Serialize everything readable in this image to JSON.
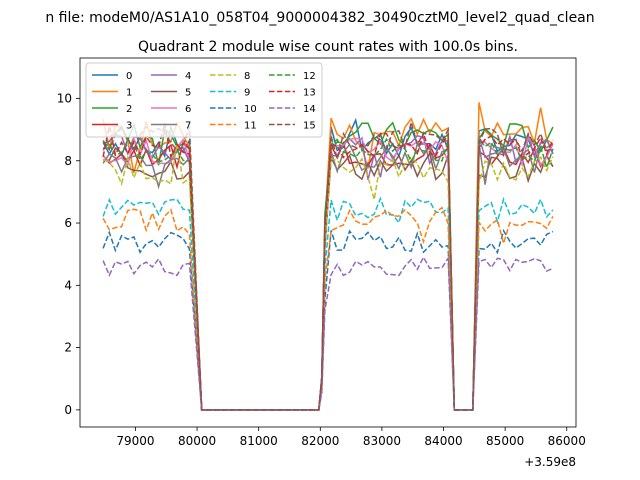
{
  "page": {
    "suptitle": "n file: modeM0/AS1A10_058T04_9000004382_30490cztM0_level2_quad_clean"
  },
  "chart_data": {
    "type": "line",
    "title": "Quadrant 2 module wise count rates with 100.0s bins.",
    "xlabel": "",
    "ylabel": "",
    "x_offset_label": "+3.59e8",
    "xlim": [
      78100,
      86150
    ],
    "ylim": [
      -0.55,
      11.3
    ],
    "xticks": [
      79000,
      80000,
      81000,
      82000,
      83000,
      84000,
      85000,
      86000
    ],
    "yticks": [
      0,
      2,
      4,
      6,
      8,
      10
    ],
    "xtick_labels": [
      "79000",
      "80000",
      "81000",
      "82000",
      "83000",
      "84000",
      "85000",
      "86000"
    ],
    "ytick_labels": [
      "0",
      "2",
      "4",
      "6",
      "8",
      "10"
    ],
    "grid": false,
    "legend_position": "top-left",
    "legend_columns": 4,
    "segments": [
      {
        "from": 78475,
        "to": 79875
      },
      {
        "from": 82075,
        "to": 84075
      },
      {
        "from": 84575,
        "to": 85775
      }
    ],
    "zero_runs": [
      {
        "from": 80075,
        "to": 81975
      },
      {
        "from": 84175,
        "to": 84475
      }
    ],
    "series": [
      {
        "name": "0",
        "color": "#1f77b4",
        "dash": "solid",
        "level": 8.6,
        "amp": 0.5
      },
      {
        "name": "1",
        "color": "#ff7f0e",
        "dash": "solid",
        "level": 8.9,
        "amp": 0.55
      },
      {
        "name": "2",
        "color": "#2ca02c",
        "dash": "solid",
        "level": 8.8,
        "amp": 0.45
      },
      {
        "name": "3",
        "color": "#d62728",
        "dash": "solid",
        "level": 8.2,
        "amp": 0.4
      },
      {
        "name": "4",
        "color": "#9467bd",
        "dash": "solid",
        "level": 8.4,
        "amp": 0.45
      },
      {
        "name": "5",
        "color": "#8c564b",
        "dash": "solid",
        "level": 7.8,
        "amp": 0.45
      },
      {
        "name": "6",
        "color": "#e377c2",
        "dash": "solid",
        "level": 8.3,
        "amp": 0.45
      },
      {
        "name": "7",
        "color": "#7f7f7f",
        "dash": "solid",
        "level": 8.1,
        "amp": 0.5
      },
      {
        "name": "8",
        "color": "#bcbd22",
        "dash": "dashed",
        "level": 7.7,
        "amp": 0.45
      },
      {
        "name": "9",
        "color": "#17becf",
        "dash": "dashed",
        "level": 6.5,
        "amp": 0.3
      },
      {
        "name": "10",
        "color": "#1f77b4",
        "dash": "dashed",
        "level": 5.4,
        "amp": 0.35
      },
      {
        "name": "11",
        "color": "#ff7f0e",
        "dash": "dashed",
        "level": 6.1,
        "amp": 0.35
      },
      {
        "name": "12",
        "color": "#2ca02c",
        "dash": "dashed",
        "level": 8.3,
        "amp": 0.4
      },
      {
        "name": "13",
        "color": "#d62728",
        "dash": "dashed",
        "level": 8.5,
        "amp": 0.4
      },
      {
        "name": "14",
        "color": "#9467bd",
        "dash": "dashed",
        "level": 4.6,
        "amp": 0.3
      },
      {
        "name": "15",
        "color": "#8c564b",
        "dash": "dashed",
        "level": 8.7,
        "amp": 0.4
      }
    ]
  }
}
